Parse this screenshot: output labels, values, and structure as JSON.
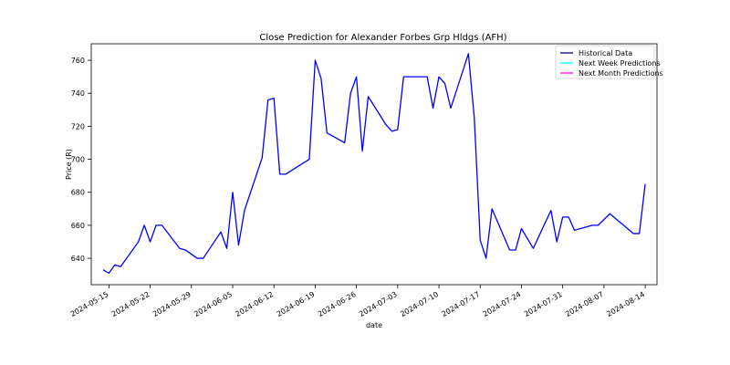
{
  "chart_data": {
    "type": "line",
    "title": "Close Prediction for Alexander Forbes Grp Hldgs (AFH)",
    "xlabel": "date",
    "ylabel": "Price (R)",
    "xlim": [
      "2024-05-12",
      "2024-08-16"
    ],
    "ylim": [
      624,
      770
    ],
    "x_ticks": [
      "2024-05-15",
      "2024-05-22",
      "2024-05-29",
      "2024-06-05",
      "2024-06-12",
      "2024-06-19",
      "2024-06-26",
      "2024-07-03",
      "2024-07-10",
      "2024-07-17",
      "2024-07-24",
      "2024-07-31",
      "2024-08-07",
      "2024-08-14"
    ],
    "y_ticks": [
      640,
      660,
      680,
      700,
      720,
      740,
      760
    ],
    "legend_position": "top-right",
    "grid": false,
    "series": [
      {
        "name": "Historical Data",
        "color": "#0000ff",
        "legend_color": "#00008b",
        "points": [
          [
            "2024-05-14",
            633
          ],
          [
            "2024-05-15",
            631
          ],
          [
            "2024-05-16",
            636
          ],
          [
            "2024-05-17",
            635
          ],
          [
            "2024-05-20",
            650
          ],
          [
            "2024-05-21",
            660
          ],
          [
            "2024-05-22",
            650
          ],
          [
            "2024-05-23",
            660
          ],
          [
            "2024-05-24",
            660
          ],
          [
            "2024-05-27",
            646
          ],
          [
            "2024-05-28",
            645
          ],
          [
            "2024-05-30",
            640
          ],
          [
            "2024-05-31",
            640
          ],
          [
            "2024-06-03",
            656
          ],
          [
            "2024-06-04",
            646
          ],
          [
            "2024-06-05",
            680
          ],
          [
            "2024-06-06",
            648
          ],
          [
            "2024-06-07",
            669
          ],
          [
            "2024-06-10",
            701
          ],
          [
            "2024-06-11",
            736
          ],
          [
            "2024-06-12",
            737
          ],
          [
            "2024-06-13",
            691
          ],
          [
            "2024-06-14",
            691
          ],
          [
            "2024-06-18",
            700
          ],
          [
            "2024-06-19",
            760
          ],
          [
            "2024-06-20",
            749
          ],
          [
            "2024-06-21",
            716
          ],
          [
            "2024-06-24",
            710
          ],
          [
            "2024-06-25",
            740
          ],
          [
            "2024-06-26",
            750
          ],
          [
            "2024-06-27",
            705
          ],
          [
            "2024-06-28",
            738
          ],
          [
            "2024-07-01",
            721
          ],
          [
            "2024-07-02",
            717
          ],
          [
            "2024-07-03",
            718
          ],
          [
            "2024-07-04",
            750
          ],
          [
            "2024-07-05",
            750
          ],
          [
            "2024-07-08",
            750
          ],
          [
            "2024-07-09",
            731
          ],
          [
            "2024-07-10",
            750
          ],
          [
            "2024-07-11",
            746
          ],
          [
            "2024-07-12",
            731
          ],
          [
            "2024-07-15",
            764
          ],
          [
            "2024-07-16",
            725
          ],
          [
            "2024-07-17",
            651
          ],
          [
            "2024-07-18",
            640
          ],
          [
            "2024-07-19",
            670
          ],
          [
            "2024-07-22",
            645
          ],
          [
            "2024-07-23",
            645
          ],
          [
            "2024-07-24",
            658
          ],
          [
            "2024-07-26",
            646
          ],
          [
            "2024-07-29",
            669
          ],
          [
            "2024-07-30",
            650
          ],
          [
            "2024-07-31",
            665
          ],
          [
            "2024-08-01",
            665
          ],
          [
            "2024-08-02",
            657
          ],
          [
            "2024-08-05",
            660
          ],
          [
            "2024-08-06",
            660
          ],
          [
            "2024-08-08",
            667
          ],
          [
            "2024-08-12",
            655
          ],
          [
            "2024-08-13",
            655
          ],
          [
            "2024-08-14",
            685
          ]
        ]
      },
      {
        "name": "Next Week Predictions",
        "color": "#00ffff",
        "points": []
      },
      {
        "name": "Next Month Predictions",
        "color": "#ff00ff",
        "points": []
      }
    ]
  }
}
